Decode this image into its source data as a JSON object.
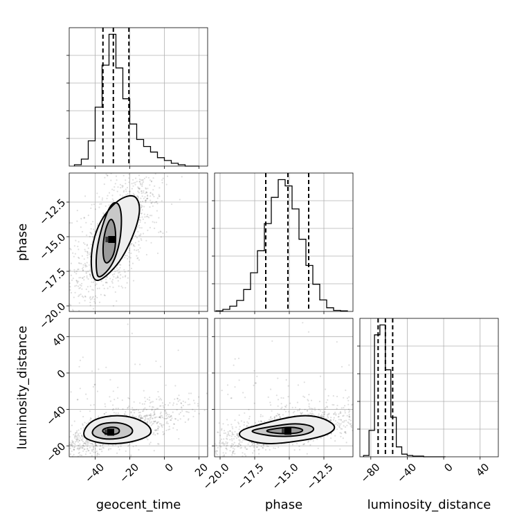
{
  "chart_data": {
    "type": "corner",
    "parameters": [
      {
        "name": "geocent_time",
        "label": "geocent_time",
        "range": [
          -55,
          25
        ],
        "ticks": [
          -40,
          -20,
          0,
          20
        ],
        "tick_labels": [
          "−40",
          "−20",
          "0",
          "20"
        ]
      },
      {
        "name": "phase",
        "label": "phase",
        "range": [
          -20.4,
          -10.4
        ],
        "ticks": [
          -20.0,
          -17.5,
          -15.0,
          -12.5
        ],
        "tick_labels": [
          "−20.0",
          "−17.5",
          "−15.0",
          "−12.5"
        ]
      },
      {
        "name": "luminosity_distance",
        "label": "luminosity_distance",
        "range": [
          -92,
          60
        ],
        "ticks": [
          -80,
          -40,
          0,
          40
        ],
        "tick_labels": [
          "−80",
          "−40",
          "0",
          "40"
        ]
      }
    ],
    "grid": true,
    "histograms": [
      {
        "param": "geocent_time",
        "bin_edges": [
          -52,
          -48,
          -44,
          -40,
          -36,
          -32,
          -28,
          -24,
          -20,
          -16,
          -12,
          -8,
          -4,
          0,
          4,
          8,
          12,
          16,
          20
        ],
        "counts": [
          1,
          5,
          18,
          42,
          72,
          94,
          70,
          48,
          30,
          19,
          14,
          10,
          6,
          4,
          2,
          1,
          0,
          0
        ],
        "quantiles": [
          -35.5,
          -29.5,
          -20.5
        ]
      },
      {
        "param": "phase",
        "bin_edges": [
          -20.3,
          -19.8,
          -19.3,
          -18.8,
          -18.3,
          -17.8,
          -17.3,
          -16.8,
          -16.3,
          -15.8,
          -15.3,
          -14.8,
          -14.3,
          -13.8,
          -13.3,
          -12.8,
          -12.3,
          -11.8,
          -11.3,
          -10.8
        ],
        "counts": [
          1,
          4,
          10,
          21,
          42,
          74,
          116,
          168,
          218,
          252,
          240,
          196,
          138,
          88,
          52,
          22,
          7,
          2,
          1
        ],
        "quantiles": [
          -16.7,
          -15.1,
          -13.6
        ]
      },
      {
        "param": "luminosity_distance",
        "bin_edges": [
          -88,
          -82,
          -76,
          -70,
          -64,
          -58,
          -52,
          -46,
          -40,
          -34,
          -28,
          -22,
          -16,
          -10,
          -4,
          2
        ],
        "counts": [
          2,
          40,
          185,
          200,
          132,
          60,
          15,
          4,
          2,
          1,
          1,
          0,
          0,
          0,
          0
        ],
        "quantiles": [
          -72,
          -64,
          -56
        ]
      }
    ],
    "joint": [
      {
        "x": "geocent_time",
        "y": "phase",
        "contours": [
          [
            [
              -33,
              -17
            ],
            [
              -29,
              -16.3
            ],
            [
              -28,
              -15.2
            ],
            [
              -28.6,
              -14.1
            ],
            [
              -31,
              -13.6
            ],
            [
              -34,
              -14.4
            ],
            [
              -35.6,
              -15.6
            ],
            [
              -35.2,
              -16.7
            ]
          ],
          [
            [
              -38,
              -18.1
            ],
            [
              -30,
              -17.1
            ],
            [
              -25.5,
              -15.4
            ],
            [
              -24.5,
              -13.5
            ],
            [
              -26.5,
              -12.5
            ],
            [
              -31,
              -12.6
            ],
            [
              -36,
              -14.2
            ],
            [
              -39.3,
              -16
            ],
            [
              -39.5,
              -17.4
            ]
          ],
          [
            [
              -42,
              -17.9
            ],
            [
              -38,
              -18.3
            ],
            [
              -28,
              -17.2
            ],
            [
              -21,
              -15.8
            ],
            [
              -15,
              -13.9
            ],
            [
              -14,
              -12.6
            ],
            [
              -18,
              -11.9
            ],
            [
              -28,
              -12.4
            ],
            [
              -38,
              -14
            ],
            [
              -42.5,
              -16
            ]
          ]
        ],
        "peak": [
          -30.5,
          -15.2
        ]
      },
      {
        "x": "geocent_time",
        "y": "luminosity_distance",
        "contours": [
          [
            [
              -34,
              -67
            ],
            [
              -30,
              -68
            ],
            [
              -26,
              -66
            ],
            [
              -26,
              -61
            ],
            [
              -30,
              -59
            ],
            [
              -35,
              -61
            ],
            [
              -36,
              -64
            ]
          ],
          [
            [
              -39,
              -71
            ],
            [
              -32,
              -73
            ],
            [
              -23,
              -71
            ],
            [
              -18,
              -66
            ],
            [
              -19,
              -59
            ],
            [
              -26,
              -54
            ],
            [
              -36,
              -55
            ],
            [
              -41,
              -61
            ],
            [
              -42,
              -67
            ]
          ],
          [
            [
              -42,
              -75
            ],
            [
              -33,
              -78
            ],
            [
              -22,
              -77
            ],
            [
              -12,
              -72
            ],
            [
              -7,
              -66
            ],
            [
              -9,
              -57
            ],
            [
              -17,
              -49
            ],
            [
              -28,
              -46
            ],
            [
              -40,
              -50
            ],
            [
              -46,
              -60
            ],
            [
              -47,
              -70
            ]
          ]
        ],
        "peak": [
          -31,
          -65
        ]
      },
      {
        "x": "phase",
        "y": "luminosity_distance",
        "contours": [
          [
            [
              -16.5,
              -65
            ],
            [
              -15.5,
              -67
            ],
            [
              -14.3,
              -66
            ],
            [
              -13.9,
              -62
            ],
            [
              -14.8,
              -59
            ],
            [
              -16,
              -61
            ],
            [
              -16.7,
              -63
            ]
          ],
          [
            [
              -17.5,
              -66
            ],
            [
              -16,
              -70
            ],
            [
              -14.2,
              -69
            ],
            [
              -13.2,
              -64
            ],
            [
              -13.3,
              -58
            ],
            [
              -14.6,
              -55
            ],
            [
              -16.4,
              -59
            ],
            [
              -17.8,
              -63
            ]
          ],
          [
            [
              -18.6,
              -71
            ],
            [
              -17,
              -78
            ],
            [
              -15.3,
              -77
            ],
            [
              -12.5,
              -70
            ],
            [
              -11.5,
              -60
            ],
            [
              -12.4,
              -50
            ],
            [
              -13.7,
              -46
            ],
            [
              -15.2,
              -49
            ],
            [
              -17,
              -56
            ],
            [
              -18.6,
              -63
            ]
          ]
        ],
        "peak": [
          -15.1,
          -64
        ]
      }
    ]
  }
}
